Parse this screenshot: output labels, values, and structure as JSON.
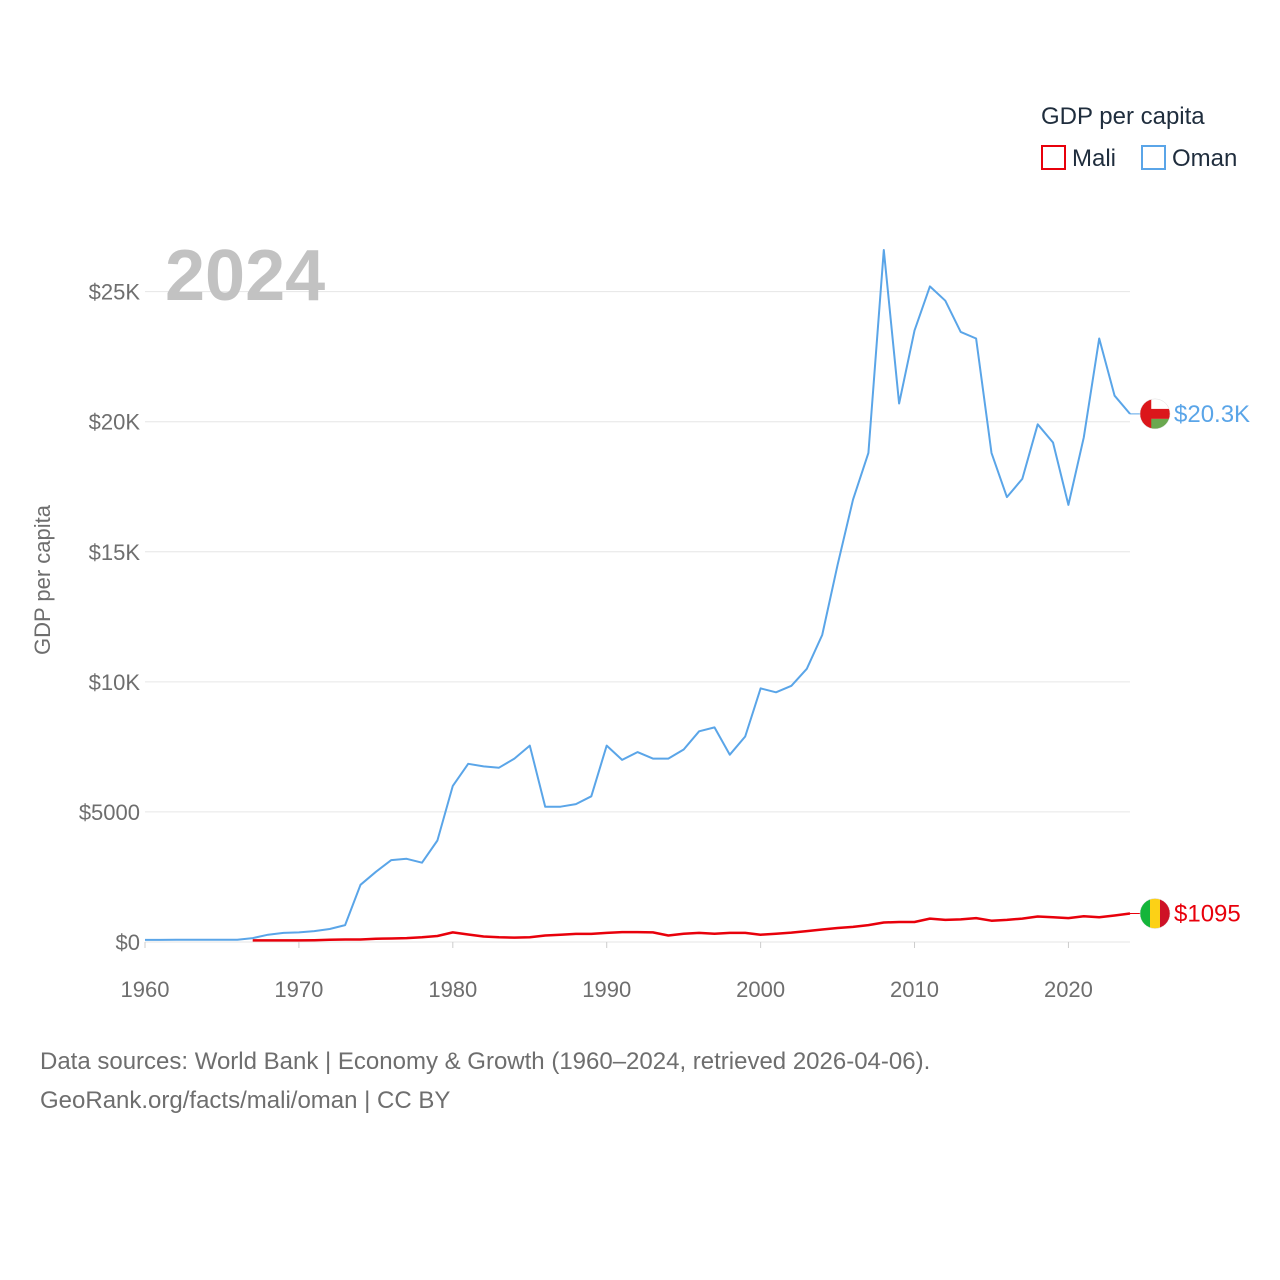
{
  "chart_data": {
    "type": "line",
    "year_label": "2024",
    "ylabel": "GDP per capita",
    "xlim": [
      1960,
      2024
    ],
    "ylim": [
      0,
      26600
    ],
    "x_ticks": [
      1960,
      1970,
      1980,
      1990,
      2000,
      2010,
      2020
    ],
    "y_ticks": [
      {
        "value": 0,
        "label": "$0"
      },
      {
        "value": 5000,
        "label": "$5000"
      },
      {
        "value": 10000,
        "label": "$10K"
      },
      {
        "value": 15000,
        "label": "$15K"
      },
      {
        "value": 20000,
        "label": "$20K"
      },
      {
        "value": 25000,
        "label": "$25K"
      }
    ],
    "legend": {
      "title": "GDP per capita",
      "placement": "top-right"
    },
    "series": [
      {
        "name": "Mali",
        "color": "#e8000b",
        "end_label": "$1095",
        "flag": "mali-flag",
        "x": [
          1967,
          1968,
          1969,
          1970,
          1971,
          1972,
          1973,
          1974,
          1975,
          1976,
          1977,
          1978,
          1979,
          1980,
          1981,
          1982,
          1983,
          1984,
          1985,
          1986,
          1987,
          1988,
          1989,
          1990,
          1991,
          1992,
          1993,
          1994,
          1995,
          1996,
          1997,
          1998,
          1999,
          2000,
          2001,
          2002,
          2003,
          2004,
          2005,
          2006,
          2007,
          2008,
          2009,
          2010,
          2011,
          2012,
          2013,
          2014,
          2015,
          2016,
          2017,
          2018,
          2019,
          2020,
          2021,
          2022,
          2023,
          2024
        ],
        "values": [
          60,
          62,
          63,
          63,
          70,
          85,
          95,
          95,
          125,
          135,
          150,
          180,
          230,
          370,
          290,
          210,
          180,
          170,
          185,
          250,
          280,
          310,
          310,
          350,
          380,
          380,
          370,
          250,
          320,
          350,
          320,
          350,
          350,
          280,
          320,
          360,
          420,
          480,
          540,
          580,
          650,
          750,
          770,
          770,
          900,
          850,
          870,
          920,
          820,
          850,
          900,
          980,
          950,
          920,
          990,
          950,
          1020,
          1095
        ]
      },
      {
        "name": "Oman",
        "color": "#5aa5e8",
        "end_label": "$20.3K",
        "flag": "oman-flag",
        "x": [
          1960,
          1961,
          1962,
          1963,
          1964,
          1965,
          1966,
          1967,
          1968,
          1969,
          1970,
          1971,
          1972,
          1973,
          1974,
          1975,
          1976,
          1977,
          1978,
          1979,
          1980,
          1981,
          1982,
          1983,
          1984,
          1985,
          1986,
          1987,
          1988,
          1989,
          1990,
          1991,
          1992,
          1993,
          1994,
          1995,
          1996,
          1997,
          1998,
          1999,
          2000,
          2001,
          2002,
          2003,
          2004,
          2005,
          2006,
          2007,
          2008,
          2009,
          2010,
          2011,
          2012,
          2013,
          2014,
          2015,
          2016,
          2017,
          2018,
          2019,
          2020,
          2021,
          2022,
          2023,
          2024
        ],
        "values": [
          80,
          80,
          85,
          85,
          90,
          90,
          90,
          150,
          280,
          350,
          370,
          420,
          500,
          650,
          2200,
          2700,
          3150,
          3200,
          3050,
          3900,
          6000,
          6850,
          6750,
          6700,
          7050,
          7550,
          5200,
          5200,
          5300,
          5600,
          7550,
          7000,
          7300,
          7050,
          7050,
          7400,
          8100,
          8250,
          7200,
          7900,
          9750,
          9600,
          9850,
          10500,
          11800,
          14500,
          17000,
          18800,
          26600,
          20700,
          23500,
          25200,
          24650,
          23450,
          23200,
          18800,
          17100,
          17800,
          19900,
          19200,
          16800,
          19400,
          23200,
          21000,
          20300
        ]
      }
    ]
  },
  "footer": {
    "source_line": "Data sources: World Bank | Economy & Growth (1960–2024, retrieved 2026-04-06).",
    "credit_line": "GeoRank.org/facts/mali/oman | CC BY"
  }
}
